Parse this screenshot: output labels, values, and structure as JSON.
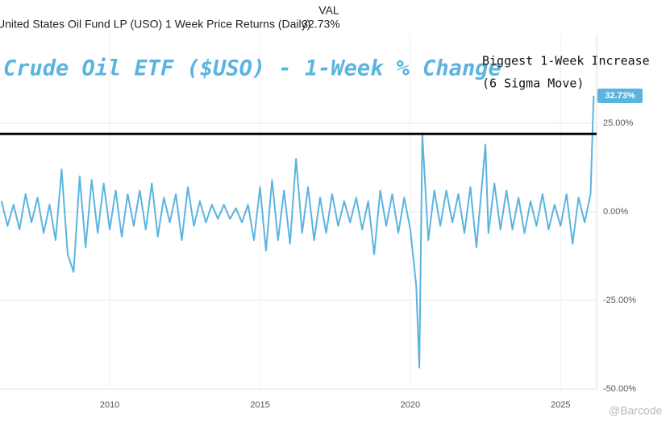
{
  "header": {
    "series_name": "United States Oil Fund LP (USO) 1 Week Price Returns (Daily)",
    "column": "VAL",
    "value": "32.73%"
  },
  "chart_data": {
    "type": "line",
    "title": "Crude Oil ETF ($USO) - 1-Week % Change",
    "annotations": [
      "Biggest 1-Week Increase",
      "(6 Sigma Move)"
    ],
    "end_label": "32.73%",
    "watermark": "@Barcode",
    "reference_line": 22,
    "x": [
      2006.4,
      2006.6,
      2006.8,
      2007.0,
      2007.2,
      2007.4,
      2007.6,
      2007.8,
      2008.0,
      2008.2,
      2008.4,
      2008.6,
      2008.8,
      2009.0,
      2009.2,
      2009.4,
      2009.6,
      2009.8,
      2010.0,
      2010.2,
      2010.4,
      2010.6,
      2010.8,
      2011.0,
      2011.2,
      2011.4,
      2011.6,
      2011.8,
      2012.0,
      2012.2,
      2012.4,
      2012.6,
      2012.8,
      2013.0,
      2013.2,
      2013.4,
      2013.6,
      2013.8,
      2014.0,
      2014.2,
      2014.4,
      2014.6,
      2014.8,
      2015.0,
      2015.2,
      2015.4,
      2015.6,
      2015.8,
      2016.0,
      2016.2,
      2016.4,
      2016.6,
      2016.8,
      2017.0,
      2017.2,
      2017.4,
      2017.6,
      2017.8,
      2018.0,
      2018.2,
      2018.4,
      2018.6,
      2018.8,
      2019.0,
      2019.2,
      2019.4,
      2019.6,
      2019.8,
      2020.0,
      2020.2,
      2020.3,
      2020.4,
      2020.6,
      2020.8,
      2021.0,
      2021.2,
      2021.4,
      2021.6,
      2021.8,
      2022.0,
      2022.2,
      2022.4,
      2022.5,
      2022.6,
      2022.8,
      2023.0,
      2023.2,
      2023.4,
      2023.6,
      2023.8,
      2024.0,
      2024.2,
      2024.4,
      2024.6,
      2024.8,
      2025.0,
      2025.2,
      2025.4,
      2025.6,
      2025.8,
      2026.0,
      2026.1
    ],
    "series": [
      {
        "name": "United States Oil Fund LP (USO) 1 Week Price Returns (Daily)",
        "color": "#5bb4e0",
        "values": [
          3,
          -4,
          2,
          -5,
          5,
          -3,
          4,
          -6,
          2,
          -8,
          12,
          -12,
          -17,
          10,
          -10,
          9,
          -6,
          8,
          -5,
          6,
          -7,
          5,
          -4,
          6,
          -5,
          8,
          -7,
          4,
          -3,
          5,
          -8,
          7,
          -4,
          3,
          -3,
          2,
          -2,
          2,
          -2,
          1,
          -3,
          2,
          -8,
          7,
          -11,
          9,
          -8,
          6,
          -9,
          15,
          -6,
          7,
          -8,
          4,
          -6,
          5,
          -4,
          3,
          -3,
          4,
          -5,
          3,
          -12,
          6,
          -4,
          5,
          -6,
          4,
          -5,
          -21,
          -44,
          22,
          -8,
          6,
          -4,
          6,
          -3,
          5,
          -6,
          7,
          -10,
          9,
          19,
          -6,
          8,
          -5,
          6,
          -5,
          4,
          -6,
          3,
          -4,
          5,
          -5,
          2,
          -4,
          5,
          -9,
          4,
          -3,
          5,
          32.73
        ]
      }
    ],
    "xlim": [
      2006.35,
      2026.2
    ],
    "xticks": [
      2010,
      2015,
      2020,
      2025
    ],
    "ylim": [
      -50,
      50
    ],
    "yticks": [
      {
        "value": 25,
        "label": "25.00%"
      },
      {
        "value": 0,
        "label": "0.00%"
      },
      {
        "value": -25,
        "label": "-25.00%"
      },
      {
        "value": -50,
        "label": "-50.00%"
      }
    ],
    "grid": true
  }
}
